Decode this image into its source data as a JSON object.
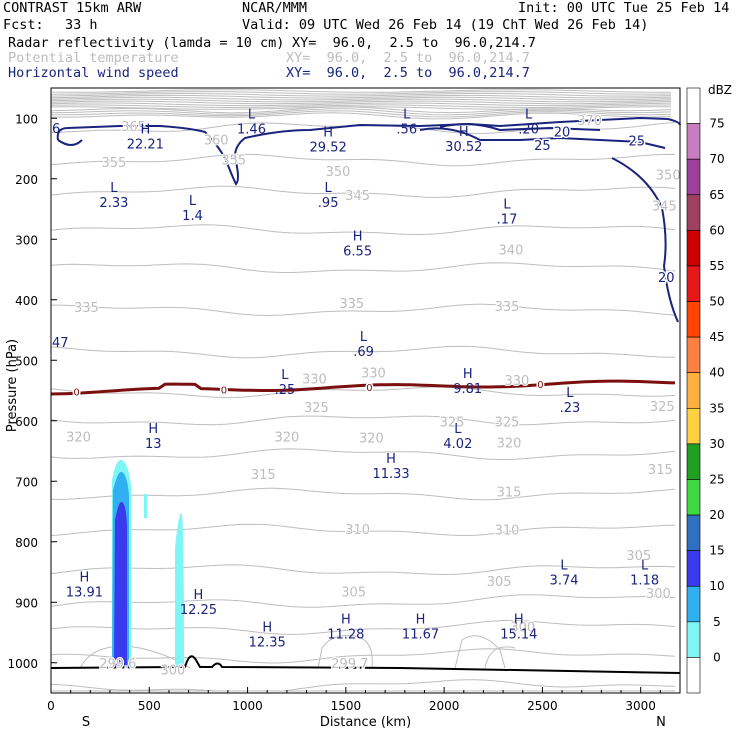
{
  "header": {
    "model": "CONTRAST 15km ARW",
    "center": "NCAR/MMM",
    "init": "Init: 00 UTC Tue 25 Feb 14",
    "fcst_label": "Fcst:",
    "fcst_value": "33 h",
    "valid": "Valid: 09 UTC Wed 26 Feb 14 (19 ChT Wed 26 Feb 14)",
    "fields": [
      {
        "name": "Radar reflectivity (lamda = 10 cm)",
        "xy": "XY=  96.0,  2.5 to  96.0,214.7",
        "color": "#000000"
      },
      {
        "name": "Potential temperature",
        "xy": "XY=  96.0,  2.5 to  96.0,214.7",
        "color": "#bdbdbd"
      },
      {
        "name": "Horizontal wind speed",
        "xy": "XY=  96.0,  2.5 to  96.0,214.7",
        "color": "#1a237e"
      }
    ]
  },
  "chart_data": {
    "type": "cross-section",
    "xlabel": "Distance (km)",
    "ylabel": "Pressure (hPa)",
    "xlim": [
      0,
      3200
    ],
    "ylim": [
      1050,
      50
    ],
    "x_ticks": [
      0,
      500,
      1000,
      1500,
      2000,
      2500,
      3000
    ],
    "y_ticks": [
      100,
      200,
      300,
      400,
      500,
      600,
      700,
      800,
      900,
      1000
    ],
    "x_end_labels": {
      "left": "S",
      "right": "N"
    },
    "colorbar": {
      "unit": "dBZ",
      "ticks": [
        75,
        70,
        65,
        60,
        55,
        50,
        45,
        40,
        35,
        30,
        25,
        20,
        15,
        10,
        5,
        0
      ],
      "colors": [
        "#ffffff",
        "#c77dc0",
        "#9e3fa0",
        "#a04060",
        "#d00000",
        "#e8181a",
        "#ff4500",
        "#ff8040",
        "#ffb040",
        "#ffd040",
        "#20a020",
        "#40d840",
        "#3070c0",
        "#3a3aef",
        "#30b0f0",
        "#80f5f5",
        "#ffffff"
      ]
    },
    "wind_speed_contours": [
      20,
      25
    ],
    "theta_contour_labels": [
      {
        "text": "370",
        "x": 2740,
        "p": 103
      },
      {
        "text": "365",
        "x": 420,
        "p": 113
      },
      {
        "text": "360",
        "x": 840,
        "p": 135
      },
      {
        "text": "355",
        "x": 320,
        "p": 172
      },
      {
        "text": "355",
        "x": 930,
        "p": 168
      },
      {
        "text": "350",
        "x": 1460,
        "p": 187
      },
      {
        "text": "350",
        "x": 3140,
        "p": 193
      },
      {
        "text": "345",
        "x": 1560,
        "p": 227
      },
      {
        "text": "345",
        "x": 3120,
        "p": 244
      },
      {
        "text": "340",
        "x": 2340,
        "p": 317
      },
      {
        "text": "335",
        "x": 180,
        "p": 412
      },
      {
        "text": "335",
        "x": 1530,
        "p": 405
      },
      {
        "text": "335",
        "x": 2320,
        "p": 410
      },
      {
        "text": "330",
        "x": 1340,
        "p": 530
      },
      {
        "text": "330",
        "x": 1640,
        "p": 520
      },
      {
        "text": "330",
        "x": 2370,
        "p": 533
      },
      {
        "text": "325",
        "x": 1350,
        "p": 577
      },
      {
        "text": "325",
        "x": 2040,
        "p": 601
      },
      {
        "text": "325",
        "x": 2320,
        "p": 601
      },
      {
        "text": "325",
        "x": 3110,
        "p": 576
      },
      {
        "text": "320",
        "x": 140,
        "p": 626
      },
      {
        "text": "320",
        "x": 1200,
        "p": 626
      },
      {
        "text": "320",
        "x": 1630,
        "p": 628
      },
      {
        "text": "320",
        "x": 2330,
        "p": 636
      },
      {
        "text": "315",
        "x": 1080,
        "p": 688
      },
      {
        "text": "315",
        "x": 3100,
        "p": 680
      },
      {
        "text": "315",
        "x": 2330,
        "p": 717
      },
      {
        "text": "310",
        "x": 1560,
        "p": 779
      },
      {
        "text": "310",
        "x": 2320,
        "p": 780
      },
      {
        "text": "305",
        "x": 2280,
        "p": 865
      },
      {
        "text": "305",
        "x": 2990,
        "p": 822
      },
      {
        "text": "305",
        "x": 1540,
        "p": 882
      },
      {
        "text": "300",
        "x": 3090,
        "p": 885
      },
      {
        "text": "300",
        "x": 2400,
        "p": 940
      },
      {
        "text": "299.6",
        "x": 340,
        "p": 1000
      },
      {
        "text": "299.7",
        "x": 1520,
        "p": 1000
      },
      {
        "text": "300",
        "x": 620,
        "p": 1011
      }
    ],
    "extrema": [
      {
        "type": "L",
        "value": "1.46",
        "x": 1020,
        "p": 100
      },
      {
        "type": "L",
        "value": ".56",
        "x": 1810,
        "p": 100
      },
      {
        "type": "L",
        "value": ".20",
        "x": 2430,
        "p": 100
      },
      {
        "type": "H",
        "value": "22.21",
        "x": 480,
        "p": 125
      },
      {
        "type": "H",
        "value": "29.52",
        "x": 1410,
        "p": 130
      },
      {
        "type": "H",
        "value": "30.52",
        "x": 2100,
        "p": 129
      },
      {
        "type": "L",
        "value": "2.33",
        "x": 320,
        "p": 222
      },
      {
        "type": "L",
        "value": "1.4",
        "x": 720,
        "p": 243
      },
      {
        "type": "L",
        "value": ".95",
        "x": 1410,
        "p": 222
      },
      {
        "type": "L",
        "value": ".17",
        "x": 2320,
        "p": 249
      },
      {
        "type": "H",
        "value": "6.55",
        "x": 1560,
        "p": 302
      },
      {
        "type": "L",
        "value": ".69",
        "x": 1590,
        "p": 468
      },
      {
        "type": "L",
        "value": ".25",
        "x": 1190,
        "p": 531
      },
      {
        "type": "H",
        "value": "9.81",
        "x": 2120,
        "p": 529
      },
      {
        "type": "L",
        "value": ".23",
        "x": 2640,
        "p": 561
      },
      {
        "type": "H",
        "value": "13",
        "x": 520,
        "p": 620
      },
      {
        "type": "L",
        "value": "4.02",
        "x": 2070,
        "p": 620
      },
      {
        "type": "H",
        "value": "11.33",
        "x": 1730,
        "p": 670
      },
      {
        "type": "L",
        "value": "3.74",
        "x": 2610,
        "p": 846
      },
      {
        "type": "L",
        "value": "1.18",
        "x": 3020,
        "p": 846
      },
      {
        "type": "H",
        "value": "13.91",
        "x": 170,
        "p": 866
      },
      {
        "type": "H",
        "value": "12.25",
        "x": 750,
        "p": 895
      },
      {
        "type": "H",
        "value": "12.35",
        "x": 1100,
        "p": 948
      },
      {
        "type": "H",
        "value": "11.28",
        "x": 1500,
        "p": 935
      },
      {
        "type": "H",
        "value": "11.67",
        "x": 1880,
        "p": 935
      },
      {
        "type": "H",
        "value": "15.14",
        "x": 2380,
        "p": 935
      }
    ],
    "edge_values": [
      {
        "text": "6",
        "side": "left",
        "p": 116
      },
      {
        "text": "47",
        "side": "left",
        "p": 470
      }
    ],
    "zero_line_labels": [
      {
        "text": "0",
        "x": 130
      },
      {
        "text": "0",
        "x": 880
      },
      {
        "text": "0",
        "x": 1620
      },
      {
        "text": "0",
        "x": 2490
      }
    ],
    "wind_labels": [
      {
        "text": "20",
        "x": 2600,
        "p": 122
      },
      {
        "text": "25",
        "x": 2500,
        "p": 144
      },
      {
        "text": "25",
        "x": 2980,
        "p": 137
      },
      {
        "text": "20",
        "x": 3130,
        "p": 362
      }
    ],
    "zero_line_color": "#7b0f0f",
    "theta_color": "#bdbdbd",
    "wind_color": "#1a237e",
    "label_color": "#1a237e"
  }
}
